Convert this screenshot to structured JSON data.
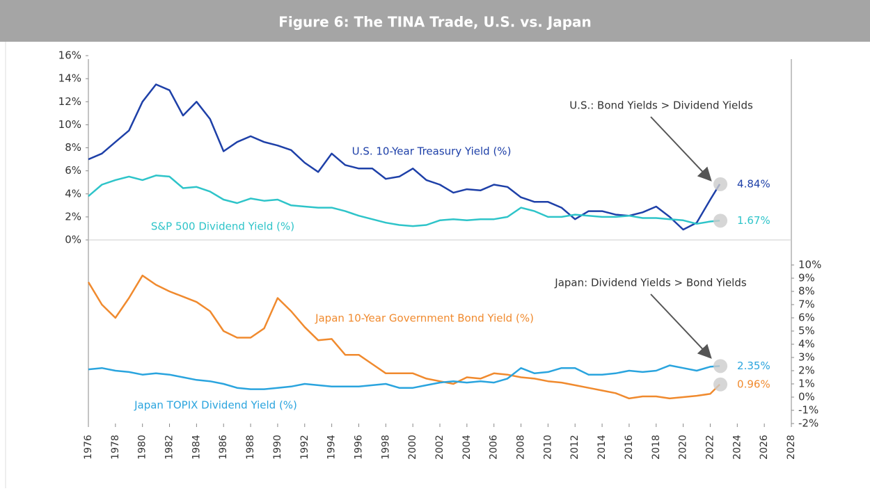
{
  "chart_data": [
    {
      "type": "line",
      "title": "Figure 6: The TINA Trade, U.S. vs. Japan",
      "x": [
        1976,
        1977,
        1978,
        1979,
        1980,
        1981,
        1982,
        1983,
        1984,
        1985,
        1986,
        1987,
        1988,
        1989,
        1990,
        1991,
        1992,
        1993,
        1994,
        1995,
        1996,
        1997,
        1998,
        1999,
        2000,
        2001,
        2002,
        2003,
        2004,
        2005,
        2006,
        2007,
        2008,
        2009,
        2010,
        2011,
        2012,
        2013,
        2014,
        2015,
        2016,
        2017,
        2018,
        2019,
        2020,
        2021,
        2022,
        2022.7
      ],
      "xlim": [
        1976,
        2028
      ],
      "ylim": [
        0,
        16
      ],
      "yticks": [
        {
          "value": 0,
          "label": "0%"
        },
        {
          "value": 2,
          "label": "2%"
        },
        {
          "value": 4,
          "label": "4%"
        },
        {
          "value": 6,
          "label": "6%"
        },
        {
          "value": 8,
          "label": "8%"
        },
        {
          "value": 10,
          "label": "10%"
        },
        {
          "value": 12,
          "label": "12%"
        },
        {
          "value": 14,
          "label": "14%"
        },
        {
          "value": 16,
          "label": "16%"
        }
      ],
      "annotation": "U.S.: Bond Yields > Dividend Yields",
      "series": [
        {
          "name": "U.S. 10-Year Treasury Yield (%)",
          "color": "#1e40a8",
          "end_label": "4.84%",
          "values": [
            7.0,
            7.5,
            8.5,
            9.5,
            12.0,
            13.5,
            13.0,
            10.8,
            12.0,
            10.5,
            7.7,
            8.5,
            9.0,
            8.5,
            8.2,
            7.8,
            6.7,
            5.9,
            7.5,
            6.5,
            6.2,
            6.2,
            5.3,
            5.5,
            6.2,
            5.2,
            4.8,
            4.1,
            4.4,
            4.3,
            4.8,
            4.6,
            3.7,
            3.3,
            3.3,
            2.8,
            1.8,
            2.5,
            2.5,
            2.2,
            2.1,
            2.4,
            2.9,
            2.0,
            0.9,
            1.5,
            3.5,
            4.84
          ]
        },
        {
          "name": "S&P 500 Dividend Yield (%)",
          "color": "#2ec4c9",
          "end_label": "1.67%",
          "values": [
            3.8,
            4.8,
            5.2,
            5.5,
            5.2,
            5.6,
            5.5,
            4.5,
            4.6,
            4.2,
            3.5,
            3.2,
            3.6,
            3.4,
            3.5,
            3.0,
            2.9,
            2.8,
            2.8,
            2.5,
            2.1,
            1.8,
            1.5,
            1.3,
            1.2,
            1.3,
            1.7,
            1.8,
            1.7,
            1.8,
            1.8,
            2.0,
            2.8,
            2.5,
            2.0,
            2.0,
            2.2,
            2.1,
            2.0,
            2.0,
            2.1,
            1.9,
            1.9,
            1.8,
            1.7,
            1.4,
            1.6,
            1.67
          ]
        }
      ]
    },
    {
      "type": "line",
      "x": [
        1976,
        1977,
        1978,
        1979,
        1980,
        1981,
        1982,
        1983,
        1984,
        1985,
        1986,
        1987,
        1988,
        1989,
        1990,
        1991,
        1992,
        1993,
        1994,
        1995,
        1996,
        1997,
        1998,
        1999,
        2000,
        2001,
        2002,
        2003,
        2004,
        2005,
        2006,
        2007,
        2008,
        2009,
        2010,
        2011,
        2012,
        2013,
        2014,
        2015,
        2016,
        2017,
        2018,
        2019,
        2020,
        2021,
        2022,
        2022.7
      ],
      "xlim": [
        1976,
        2028
      ],
      "xticks": [
        1976,
        1978,
        1980,
        1982,
        1984,
        1986,
        1988,
        1990,
        1992,
        1994,
        1996,
        1998,
        2000,
        2002,
        2004,
        2006,
        2008,
        2010,
        2012,
        2014,
        2016,
        2018,
        2020,
        2022,
        2024,
        2026,
        2028
      ],
      "y2lim": [
        -2,
        10
      ],
      "y2ticks": [
        {
          "value": -2,
          "label": "-2%"
        },
        {
          "value": -1,
          "label": "-1%"
        },
        {
          "value": 0,
          "label": "0%"
        },
        {
          "value": 1,
          "label": "1%"
        },
        {
          "value": 2,
          "label": "2%"
        },
        {
          "value": 3,
          "label": "3%"
        },
        {
          "value": 4,
          "label": "4%"
        },
        {
          "value": 5,
          "label": "5%"
        },
        {
          "value": 6,
          "label": "6%"
        },
        {
          "value": 7,
          "label": "7%"
        },
        {
          "value": 8,
          "label": "8%"
        },
        {
          "value": 9,
          "label": "9%"
        },
        {
          "value": 10,
          "label": "10%"
        }
      ],
      "annotation": "Japan: Dividend Yields > Bond Yields",
      "series": [
        {
          "name": "Japan 10-Year Government Bond Yield (%)",
          "color": "#f08a2e",
          "axis": "y2",
          "end_label": "0.96%",
          "values": [
            8.7,
            7.0,
            6.0,
            7.5,
            9.2,
            8.5,
            8.0,
            7.6,
            7.2,
            6.5,
            5.0,
            4.5,
            4.5,
            5.2,
            7.5,
            6.5,
            5.3,
            4.3,
            4.4,
            3.2,
            3.2,
            2.5,
            1.8,
            1.8,
            1.8,
            1.4,
            1.2,
            1.0,
            1.5,
            1.4,
            1.8,
            1.7,
            1.5,
            1.4,
            1.2,
            1.1,
            0.9,
            0.7,
            0.5,
            0.3,
            -0.1,
            0.05,
            0.05,
            -0.1,
            0.0,
            0.1,
            0.25,
            0.96
          ]
        },
        {
          "name": "Japan TOPIX Dividend Yield (%)",
          "color": "#2aa4de",
          "axis": "y2",
          "end_label": "2.35%",
          "values": [
            2.1,
            2.2,
            2.0,
            1.9,
            1.7,
            1.8,
            1.7,
            1.5,
            1.3,
            1.2,
            1.0,
            0.7,
            0.6,
            0.6,
            0.7,
            0.8,
            1.0,
            0.9,
            0.8,
            0.8,
            0.8,
            0.9,
            1.0,
            0.7,
            0.7,
            0.9,
            1.1,
            1.2,
            1.1,
            1.2,
            1.1,
            1.4,
            2.2,
            1.8,
            1.9,
            2.2,
            2.2,
            1.7,
            1.7,
            1.8,
            2.0,
            1.9,
            2.0,
            2.4,
            2.2,
            2.0,
            2.3,
            2.35
          ]
        }
      ]
    }
  ]
}
